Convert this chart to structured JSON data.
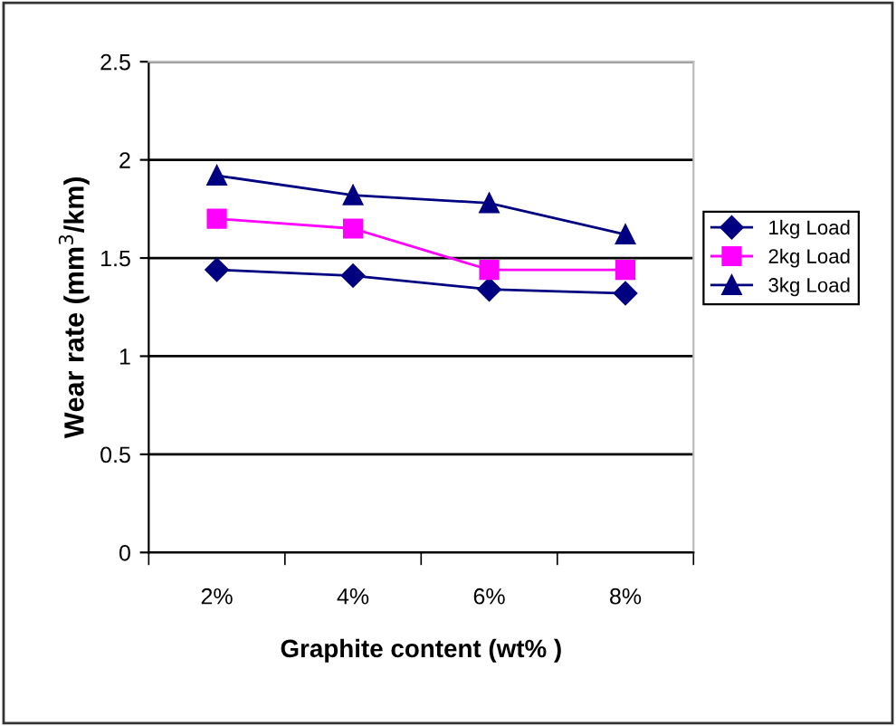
{
  "chart_data": {
    "type": "line",
    "xlabel": "Graphite content (wt% )",
    "ylabel": "Wear rate (mm$^{3}$/km)",
    "categories": [
      "2%",
      "4%",
      "6%",
      "8%"
    ],
    "series": [
      {
        "name": "1kg Load",
        "color": "#000080",
        "marker": "diamond",
        "values": [
          1.44,
          1.41,
          1.34,
          1.32
        ]
      },
      {
        "name": "2kg Load",
        "color": "#ff00ff",
        "marker": "square",
        "values": [
          1.7,
          1.65,
          1.44,
          1.44
        ]
      },
      {
        "name": "3kg Load",
        "color": "#000080",
        "marker": "triangle",
        "values": [
          1.92,
          1.82,
          1.78,
          1.62
        ]
      }
    ],
    "ylim": [
      0,
      2.5
    ],
    "yticks": [
      0,
      0.5,
      1,
      1.5,
      2,
      2.5
    ],
    "grid": "y",
    "legend": "right"
  }
}
